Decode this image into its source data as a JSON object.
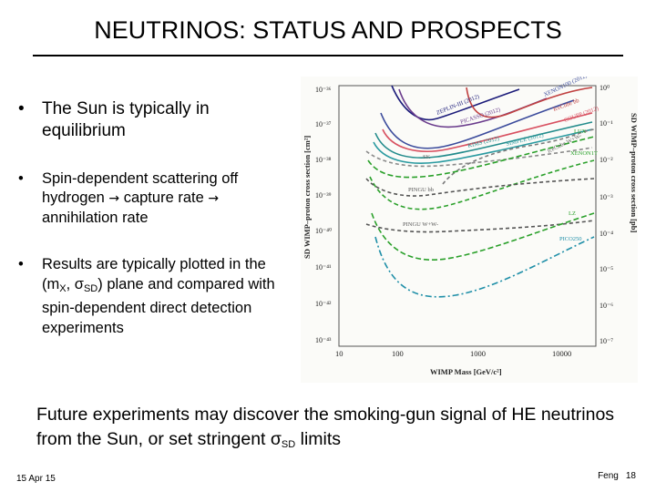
{
  "slide": {
    "title": "NEUTRINOS: STATUS AND PROSPECTS",
    "bullets": {
      "b1": "The Sun is typically in equilibrium",
      "b2_pre": "Spin-dependent scattering off hydrogen ",
      "b2_mid": " capture rate ",
      "b2_post": " annihilation rate",
      "b3_pre": "Results are typically plotted in the (m",
      "b3_sub1": "X",
      "b3_mid": ", σ",
      "b3_sub2": "SD",
      "b3_post": ") plane and compared with spin-dependent direct detection experiments"
    },
    "conclusion_pre": "Future experiments may discover the smoking-gun signal of HE neutrinos from the Sun, or set stringent σ",
    "conclusion_sub": "SD",
    "conclusion_post": " limits",
    "footer": {
      "date": "15 Apr 15",
      "author": "Feng",
      "page": "18"
    }
  },
  "figure": {
    "y_left_label": "SD WIMP–proton cross section [cm²]",
    "y_right_label": "SD WIMP–proton cross section [pb]",
    "x_label": "WIMP Mass [GeV/c²]",
    "y_left_ticks": [
      "10⁻³⁶",
      "10⁻³⁷",
      "10⁻³⁸",
      "10⁻³⁹",
      "10⁻⁴⁰",
      "10⁻⁴¹",
      "10⁻⁴²",
      "10⁻⁴³"
    ],
    "y_right_ticks": [
      "10⁰",
      "10⁻¹",
      "10⁻²",
      "10⁻³",
      "10⁻⁴",
      "10⁻⁵",
      "10⁻⁶",
      "10⁻⁷"
    ],
    "x_ticks": [
      "10",
      "100",
      "1000",
      "10000"
    ],
    "curve_labels": {
      "zeplin": "ZEPLIN-III (2012)",
      "picasso": "PICASSO (2012)",
      "xenon": "XENON100 (2012)",
      "ice_bb": "IceCube bb",
      "coupp_top": "COUPP (2012)",
      "kims": "KIMS (2012)",
      "simple": "SIMPLE (2012)",
      "super_k": "SK",
      "icecube_ww": "IceCube W+W-",
      "lux": "LUX",
      "xenon1t": "XENON1T",
      "pingu_bb": "PINGU bb",
      "pingu_ww": "PINGU W+W-",
      "lz": "LZ",
      "pico250": "PICO250"
    }
  }
}
